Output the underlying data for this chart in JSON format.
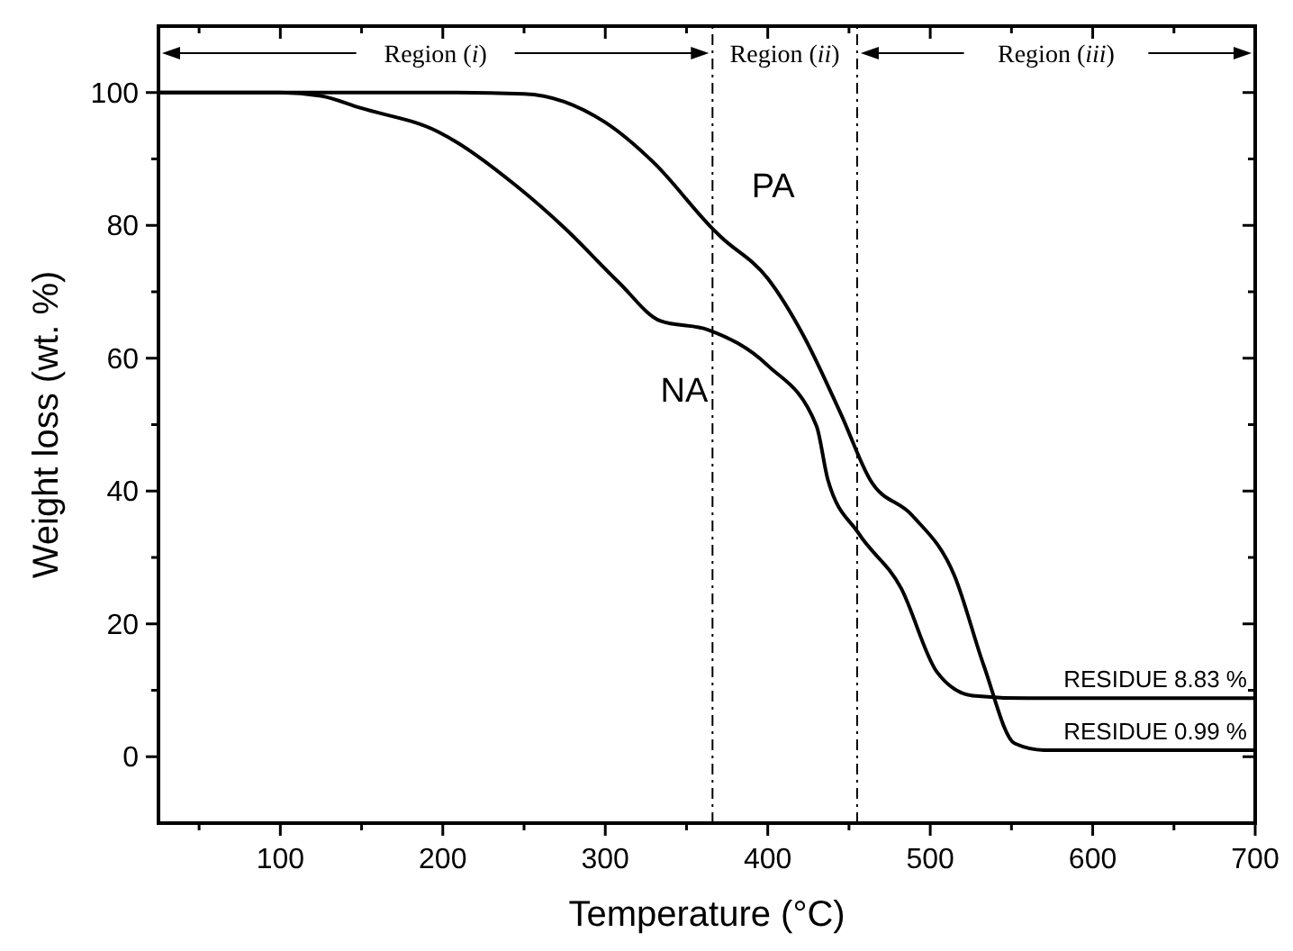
{
  "chart_data": {
    "type": "line",
    "xlabel": "Temperature (°C)",
    "ylabel": "Weight loss (wt. %)",
    "x": [
      25,
      100,
      125,
      149,
      197,
      245,
      275,
      308,
      334,
      363,
      400,
      430,
      437,
      456,
      482,
      504,
      526,
      560,
      700
    ],
    "xlim": [
      25,
      700
    ],
    "xticks": [
      {
        "value": 50,
        "label": null
      },
      100,
      {
        "value": 150,
        "label": null
      },
      200,
      {
        "value": 250,
        "label": null
      },
      300,
      {
        "value": 350,
        "label": null
      },
      400,
      {
        "value": 450,
        "label": null
      },
      500,
      {
        "value": 550,
        "label": null
      },
      600,
      {
        "value": 650,
        "label": null
      },
      700
    ],
    "ylim": [
      -10,
      110
    ],
    "yticks": [
      0,
      {
        "value": 10,
        "label": null
      },
      20,
      {
        "value": 30,
        "label": null
      },
      40,
      {
        "value": 50,
        "label": null
      },
      60,
      {
        "value": 70,
        "label": null
      },
      80,
      {
        "value": 90,
        "label": null
      },
      100
    ],
    "series": [
      {
        "name": "NA",
        "color": "#000000",
        "values": [
          100,
          100,
          99.5,
          97.7,
          94.1,
          86.0,
          79.6,
          71.5,
          65.6,
          64.3,
          58.9,
          49.8,
          41.7,
          33.6,
          25.4,
          12.8,
          9.2,
          8.8,
          8.8
        ]
      },
      {
        "name": "PA",
        "color": "#000000",
        "x": [
          25,
          200,
          250,
          300,
          330,
          366,
          371,
          400,
          422,
          445,
          463,
          489,
          515,
          533,
          552,
          570,
          600,
          700
        ],
        "values": [
          100,
          100,
          99.8,
          95.5,
          89.4,
          79.5,
          78.3,
          72,
          63.4,
          51.6,
          41.7,
          36.3,
          27.2,
          13.7,
          2.0,
          1.0,
          1.0,
          1.0
        ]
      }
    ],
    "ref_lines": [
      {
        "axis": "x",
        "value": 366,
        "color": "#000000",
        "line_style": "dashdot"
      },
      {
        "axis": "x",
        "value": 455,
        "color": "#000000",
        "line_style": "dashdot"
      }
    ],
    "annotations": [
      "Region (i)",
      "Region (ii)",
      "Region (iii)",
      {
        "text": "RESIDUE 8.83 %",
        "x": 695,
        "y": 8.8
      },
      {
        "text": "RESIDUE 0.99 %",
        "x": 695,
        "y": 1.0
      }
    ],
    "grid": false,
    "marker": "none",
    "line_style": "solid"
  }
}
